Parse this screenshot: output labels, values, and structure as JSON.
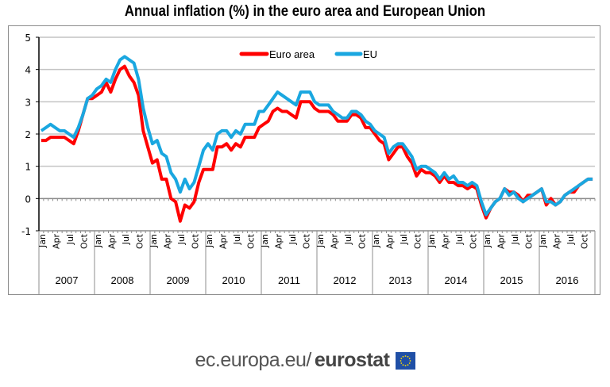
{
  "chart_data": {
    "type": "line",
    "title": "Annual inflation (%) in the euro area and European Union",
    "xlabel": "",
    "ylabel": "",
    "ylim": [
      -1,
      5
    ],
    "yticks": [
      "5",
      "4",
      "3",
      "2",
      "1",
      "0",
      "-1"
    ],
    "ytick_values": [
      5,
      4,
      3,
      2,
      1,
      0,
      -1
    ],
    "grid": true,
    "legend": {
      "placement": "top-center",
      "entries": [
        "Euro area",
        "EU"
      ]
    },
    "month_tick_labels": [
      "Jan",
      "Apr",
      "Jul",
      "Oct"
    ],
    "years": [
      "2007",
      "2008",
      "2009",
      "2010",
      "2011",
      "2012",
      "2013",
      "2014",
      "2015",
      "2016"
    ],
    "x": "monthly, Jan 2007 – Dec 2016",
    "series": [
      {
        "name": "Euro area",
        "color": "#ff0000",
        "values": [
          1.8,
          1.8,
          1.9,
          1.9,
          1.9,
          1.9,
          1.8,
          1.7,
          2.1,
          2.6,
          3.1,
          3.1,
          3.2,
          3.3,
          3.6,
          3.3,
          3.7,
          4.0,
          4.1,
          3.8,
          3.6,
          3.2,
          2.1,
          1.6,
          1.1,
          1.2,
          0.6,
          0.6,
          0.0,
          -0.1,
          -0.7,
          -0.2,
          -0.3,
          -0.1,
          0.5,
          0.9,
          0.9,
          0.9,
          1.6,
          1.6,
          1.7,
          1.5,
          1.7,
          1.6,
          1.9,
          1.9,
          1.9,
          2.2,
          2.3,
          2.4,
          2.7,
          2.8,
          2.7,
          2.7,
          2.6,
          2.5,
          3.0,
          3.0,
          3.0,
          2.8,
          2.7,
          2.7,
          2.7,
          2.6,
          2.4,
          2.4,
          2.4,
          2.6,
          2.6,
          2.5,
          2.2,
          2.2,
          2.0,
          1.8,
          1.7,
          1.2,
          1.4,
          1.6,
          1.6,
          1.3,
          1.1,
          0.7,
          0.9,
          0.8,
          0.8,
          0.7,
          0.5,
          0.7,
          0.5,
          0.5,
          0.4,
          0.4,
          0.3,
          0.4,
          0.3,
          -0.2,
          -0.6,
          -0.3,
          -0.1,
          0.0,
          0.3,
          0.2,
          0.2,
          0.1,
          -0.1,
          0.1,
          0.1,
          0.2,
          0.3,
          -0.2,
          0.0,
          -0.2,
          -0.1,
          0.1,
          0.2,
          0.2,
          0.4,
          0.5,
          0.6,
          0.6
        ]
      },
      {
        "name": "EU",
        "color": "#1aa7e0",
        "values": [
          2.1,
          2.2,
          2.3,
          2.2,
          2.1,
          2.1,
          2.0,
          1.9,
          2.2,
          2.6,
          3.1,
          3.2,
          3.4,
          3.5,
          3.7,
          3.6,
          4.0,
          4.3,
          4.4,
          4.3,
          4.2,
          3.7,
          2.8,
          2.2,
          1.7,
          1.8,
          1.4,
          1.3,
          0.8,
          0.6,
          0.2,
          0.6,
          0.3,
          0.5,
          1.0,
          1.5,
          1.7,
          1.5,
          2.0,
          2.1,
          2.1,
          1.9,
          2.1,
          2.0,
          2.3,
          2.3,
          2.3,
          2.7,
          2.7,
          2.9,
          3.1,
          3.3,
          3.2,
          3.1,
          3.0,
          2.9,
          3.3,
          3.3,
          3.3,
          3.0,
          2.9,
          2.9,
          2.9,
          2.7,
          2.6,
          2.5,
          2.5,
          2.7,
          2.7,
          2.6,
          2.4,
          2.3,
          2.1,
          2.0,
          1.9,
          1.4,
          1.6,
          1.7,
          1.7,
          1.5,
          1.3,
          0.9,
          1.0,
          1.0,
          0.9,
          0.8,
          0.6,
          0.8,
          0.6,
          0.7,
          0.5,
          0.5,
          0.4,
          0.5,
          0.4,
          -0.1,
          -0.5,
          -0.3,
          -0.1,
          0.0,
          0.3,
          0.1,
          0.2,
          0.0,
          -0.1,
          0.0,
          0.1,
          0.2,
          0.3,
          -0.1,
          -0.1,
          -0.2,
          -0.1,
          0.1,
          0.2,
          0.3,
          0.4,
          0.5,
          0.6,
          0.6
        ]
      }
    ]
  },
  "footer": {
    "url_text": "ec.europa.eu/",
    "brand_text": "eurostat",
    "flag_icon": "eu-flag-icon"
  }
}
